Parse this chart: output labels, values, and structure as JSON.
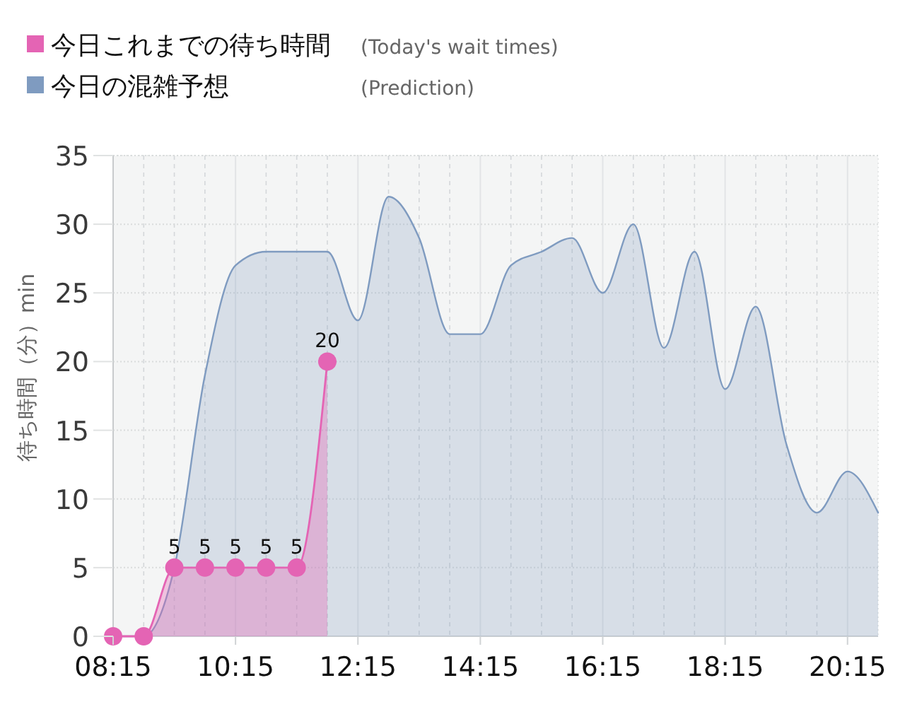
{
  "chart_data": {
    "type": "area",
    "ylabel": "待ち時間（分）min",
    "xlim": [
      8.25,
      20.75
    ],
    "ylim": [
      0,
      35
    ],
    "xticks": [
      {
        "value": 8.25,
        "label": "08:15"
      },
      {
        "value": 10.25,
        "label": "10:15"
      },
      {
        "value": 12.25,
        "label": "12:15"
      },
      {
        "value": 14.25,
        "label": "14:15"
      },
      {
        "value": 16.25,
        "label": "16:15"
      },
      {
        "value": 18.25,
        "label": "18:15"
      },
      {
        "value": 20.25,
        "label": "20:15"
      }
    ],
    "yticks": [
      0,
      5,
      10,
      15,
      20,
      25,
      30,
      35
    ],
    "grid": true,
    "legend": "top left",
    "series": [
      {
        "name": "今日の混雑予想 (Prediction)",
        "color": "#7f9bc0",
        "type": "area",
        "marker": "none",
        "x": [
          8.25,
          8.75,
          9.25,
          9.75,
          10.25,
          10.75,
          11.25,
          11.75,
          12.25,
          12.75,
          13.25,
          13.75,
          14.25,
          14.75,
          15.25,
          15.75,
          16.25,
          16.75,
          17.25,
          17.75,
          18.25,
          18.75,
          19.25,
          19.75,
          20.25,
          20.75
        ],
        "values": [
          0,
          0,
          5,
          19,
          27,
          28,
          28,
          28,
          23,
          32,
          29,
          22,
          22,
          27,
          28,
          29,
          25,
          30,
          21,
          28,
          18,
          24,
          14,
          9,
          12,
          9
        ]
      },
      {
        "name": "今日これまでの待ち時間 (Today's wait times)",
        "color": "#e464b4",
        "type": "area",
        "marker": "circle",
        "x": [
          8.25,
          8.75,
          9.25,
          9.75,
          10.25,
          10.75,
          11.25,
          11.75
        ],
        "values": [
          0,
          0,
          5,
          5,
          5,
          5,
          5,
          20
        ],
        "value_labels": [
          null,
          null,
          "5",
          "5",
          "5",
          "5",
          "5",
          "20"
        ]
      }
    ]
  }
}
